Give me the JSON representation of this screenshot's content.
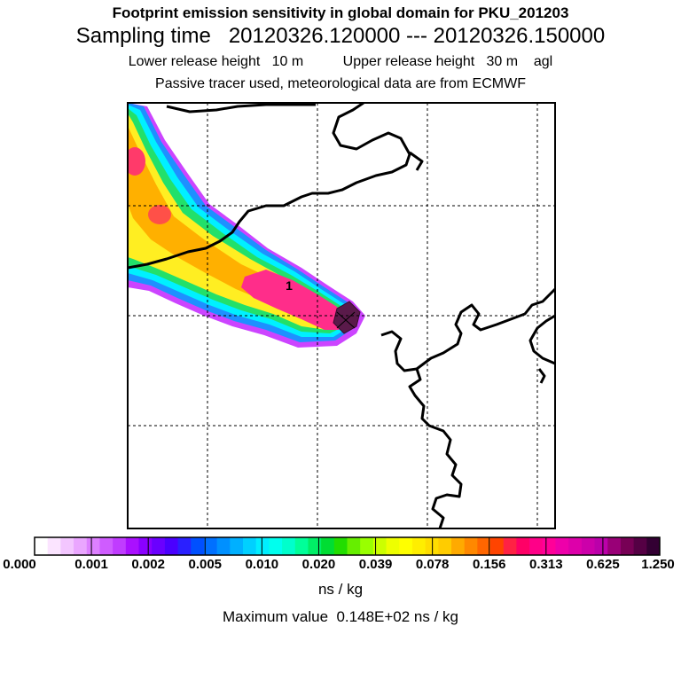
{
  "header": {
    "line1": "Footprint emission sensitivity in global domain for PKU_201203",
    "line2": "Sampling time   20120326.120000 --- 20120326.150000",
    "line3": "Lower release height   10 m          Upper release height   30 m    agl",
    "line4": "Passive tracer used, meteorological data are from ECMWF"
  },
  "map": {
    "release_label": "1",
    "colors": {
      "coastline": "#000000",
      "gridline": "#000000",
      "frame": "#000000",
      "plume_edge": "#cc44ff",
      "plume_blue": "#1e90ff",
      "plume_cyan": "#00f0ff",
      "plume_green": "#22e06a",
      "plume_yellow": "#ffee22",
      "plume_orange": "#ffb000",
      "plume_red": "#ff5030",
      "plume_pink": "#ff2d8a",
      "source_dark": "#5a1a4a"
    }
  },
  "colorbar": {
    "ticks": [
      "0.000",
      "0.001",
      "0.002",
      "0.005",
      "0.010",
      "0.020",
      "0.039",
      "0.078",
      "0.156",
      "0.313",
      "0.625",
      "1.250"
    ],
    "colors": [
      "#ffffff",
      "#fbe4ff",
      "#f3c6ff",
      "#eaa6ff",
      "#dd80ff",
      "#cf5cff",
      "#c03cff",
      "#aa10ff",
      "#8a00ff",
      "#6a00ff",
      "#4a00ff",
      "#2a20ff",
      "#0050ff",
      "#0070ff",
      "#0090ff",
      "#00b0ff",
      "#00d0ff",
      "#00eeff",
      "#00ffee",
      "#00ffcc",
      "#00ff99",
      "#00ee66",
      "#00dd33",
      "#22dd00",
      "#66ee00",
      "#99ff00",
      "#ccff00",
      "#eeff00",
      "#ffff00",
      "#ffee00",
      "#ffdd00",
      "#ffcc00",
      "#ffaa00",
      "#ff8800",
      "#ff6600",
      "#ff4400",
      "#ff2244",
      "#ff0066",
      "#ff0088",
      "#ff0099",
      "#ee00aa",
      "#dd00aa",
      "#cc00aa",
      "#bb00aa",
      "#990077",
      "#770055",
      "#550044",
      "#330033"
    ],
    "unit": "ns / kg"
  },
  "footer": {
    "max_value": "Maximum value  0.148E+02 ns / kg"
  }
}
